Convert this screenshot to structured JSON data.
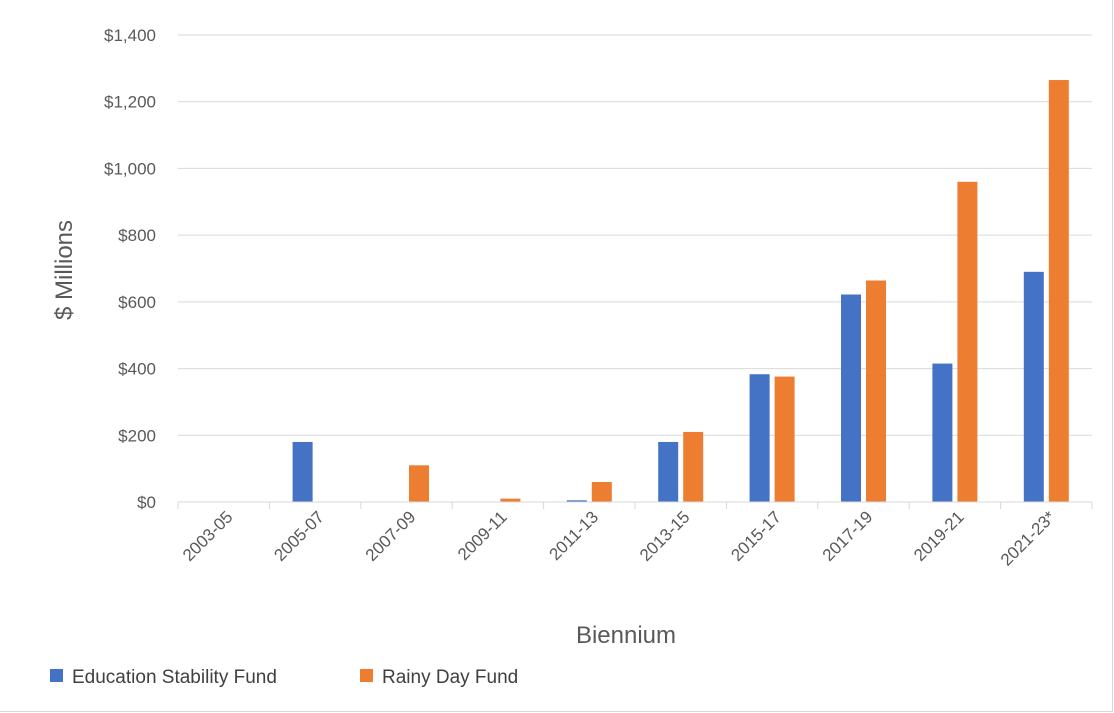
{
  "chart_data": {
    "type": "bar",
    "title": "",
    "xlabel": "Biennium",
    "ylabel": "$ Millions",
    "categories": [
      "2003-05",
      "2005-07",
      "2007-09",
      "2009-11",
      "2011-13",
      "2013-15",
      "2015-17",
      "2017-19",
      "2019-21",
      "2021-23*"
    ],
    "series": [
      {
        "name": "Education Stability Fund",
        "color": "#4472C4",
        "values": [
          0,
          180,
          0,
          0,
          5,
          180,
          383,
          622,
          415,
          690
        ]
      },
      {
        "name": "Rainy Day Fund",
        "color": "#ED7D31",
        "values": [
          0,
          0,
          110,
          10,
          60,
          210,
          376,
          664,
          960,
          1265
        ]
      }
    ],
    "ylim": [
      0,
      1400
    ],
    "yticks": [
      0,
      200,
      400,
      600,
      800,
      1000,
      1200,
      1400
    ],
    "ytick_labels": [
      "$0",
      "$200",
      "$400",
      "$600",
      "$800",
      "$1,000",
      "$1,200",
      "$1,400"
    ],
    "grid": true,
    "legend_position": "bottom-left"
  }
}
